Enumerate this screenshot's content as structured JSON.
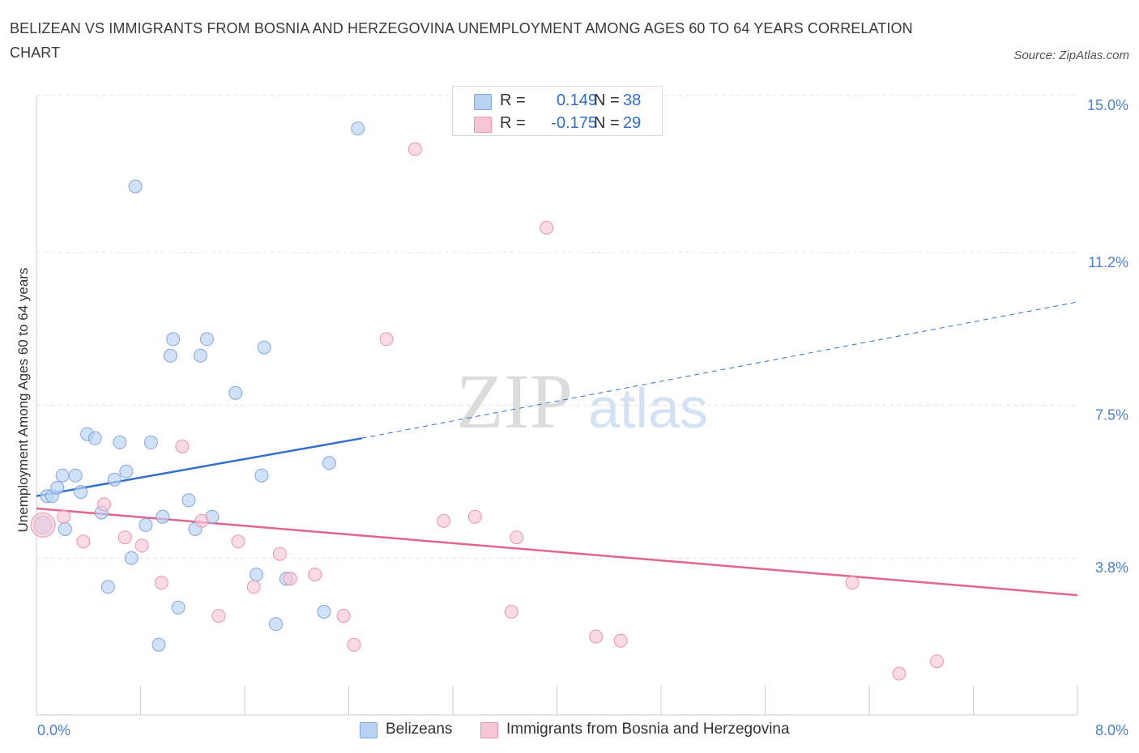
{
  "title": "BELIZEAN VS IMMIGRANTS FROM BOSNIA AND HERZEGOVINA UNEMPLOYMENT AMONG AGES 60 TO 64 YEARS CORRELATION CHART",
  "source": "Source: ZipAtlas.com",
  "watermark": {
    "zip": "ZIP",
    "atlas": "atlas"
  },
  "legend": {
    "rows": [
      {
        "r_label": "R =",
        "r_value": "0.149",
        "n_label": "N =",
        "n_value": "38"
      },
      {
        "r_label": "R =",
        "r_value": "-0.175",
        "n_label": "N =",
        "n_value": "29"
      }
    ]
  },
  "colors": {
    "blue_fill": "#b9d1f3",
    "blue_stroke": "#7fa6e0",
    "blue_line": "#2f6fd0",
    "pink_fill": "#f7c6d6",
    "pink_stroke": "#e995b0",
    "pink_line": "#e06690",
    "grid": "#e3e3e3",
    "axis": "#cccccc",
    "tick_label": "#4a7fd4"
  },
  "chart_data": {
    "type": "scatter",
    "title": "BELIZEAN VS IMMIGRANTS FROM BOSNIA AND HERZEGOVINA UNEMPLOYMENT AMONG AGES 60 TO 64 YEARS CORRELATION CHART",
    "xlabel": "",
    "ylabel": "Unemployment Among Ages 60 to 64 years",
    "xlim": [
      0,
      8.0
    ],
    "ylim": [
      0,
      15.0
    ],
    "x_tick_labels": [
      "0.0%",
      "8.0%"
    ],
    "y_ticks": [
      {
        "value": 3.8,
        "label": "3.8%"
      },
      {
        "value": 7.5,
        "label": "7.5%"
      },
      {
        "value": 11.2,
        "label": "11.2%"
      },
      {
        "value": 15.0,
        "label": "15.0%"
      }
    ],
    "grid": true,
    "legend_position": "bottom",
    "series": [
      {
        "name": "Belizeans",
        "color": "#7fa6e0",
        "points": [
          [
            0.05,
            4.6
          ],
          [
            0.08,
            5.3
          ],
          [
            0.12,
            5.3
          ],
          [
            0.16,
            5.5
          ],
          [
            0.2,
            5.8
          ],
          [
            0.22,
            4.5
          ],
          [
            0.3,
            5.8
          ],
          [
            0.34,
            5.4
          ],
          [
            0.39,
            6.8
          ],
          [
            0.45,
            6.7
          ],
          [
            0.5,
            4.9
          ],
          [
            0.55,
            3.1
          ],
          [
            0.6,
            5.7
          ],
          [
            0.64,
            6.6
          ],
          [
            0.69,
            5.9
          ],
          [
            0.73,
            3.8
          ],
          [
            0.76,
            12.8
          ],
          [
            0.84,
            4.6
          ],
          [
            0.88,
            6.6
          ],
          [
            0.94,
            1.7
          ],
          [
            0.97,
            4.8
          ],
          [
            1.03,
            8.7
          ],
          [
            1.05,
            9.1
          ],
          [
            1.09,
            2.6
          ],
          [
            1.17,
            5.2
          ],
          [
            1.22,
            4.5
          ],
          [
            1.26,
            8.7
          ],
          [
            1.31,
            9.1
          ],
          [
            1.35,
            4.8
          ],
          [
            1.53,
            7.8
          ],
          [
            1.69,
            3.4
          ],
          [
            1.73,
            5.8
          ],
          [
            1.75,
            8.9
          ],
          [
            1.84,
            2.2
          ],
          [
            1.92,
            3.3
          ],
          [
            2.21,
            2.5
          ],
          [
            2.25,
            6.1
          ],
          [
            2.47,
            14.2
          ]
        ]
      },
      {
        "name": "Immigrants from Bosnia and Herzegovina",
        "color": "#e995b0",
        "points": [
          [
            0.05,
            4.6
          ],
          [
            0.21,
            4.8
          ],
          [
            0.36,
            4.2
          ],
          [
            0.52,
            5.1
          ],
          [
            0.68,
            4.3
          ],
          [
            0.81,
            4.1
          ],
          [
            0.96,
            3.2
          ],
          [
            1.12,
            6.5
          ],
          [
            1.27,
            4.7
          ],
          [
            1.4,
            2.4
          ],
          [
            1.55,
            4.2
          ],
          [
            1.67,
            3.1
          ],
          [
            1.87,
            3.9
          ],
          [
            1.95,
            3.3
          ],
          [
            2.14,
            3.4
          ],
          [
            2.36,
            2.4
          ],
          [
            2.44,
            1.7
          ],
          [
            2.69,
            9.1
          ],
          [
            2.91,
            13.7
          ],
          [
            3.13,
            4.7
          ],
          [
            3.37,
            4.8
          ],
          [
            3.65,
            2.5
          ],
          [
            3.69,
            4.3
          ],
          [
            3.92,
            11.8
          ],
          [
            4.3,
            1.9
          ],
          [
            4.49,
            1.8
          ],
          [
            6.27,
            3.2
          ],
          [
            6.63,
            1.0
          ],
          [
            6.92,
            1.3
          ]
        ]
      }
    ],
    "trend_lines": [
      {
        "series": "Belizeans",
        "from": [
          0,
          5.3
        ],
        "solid_to": [
          2.5,
          6.7
        ],
        "dashed_to": [
          8.0,
          10.0
        ]
      },
      {
        "series": "Immigrants from Bosnia and Herzegovina",
        "from": [
          0,
          5.0
        ],
        "to": [
          8.0,
          2.9
        ]
      }
    ]
  }
}
